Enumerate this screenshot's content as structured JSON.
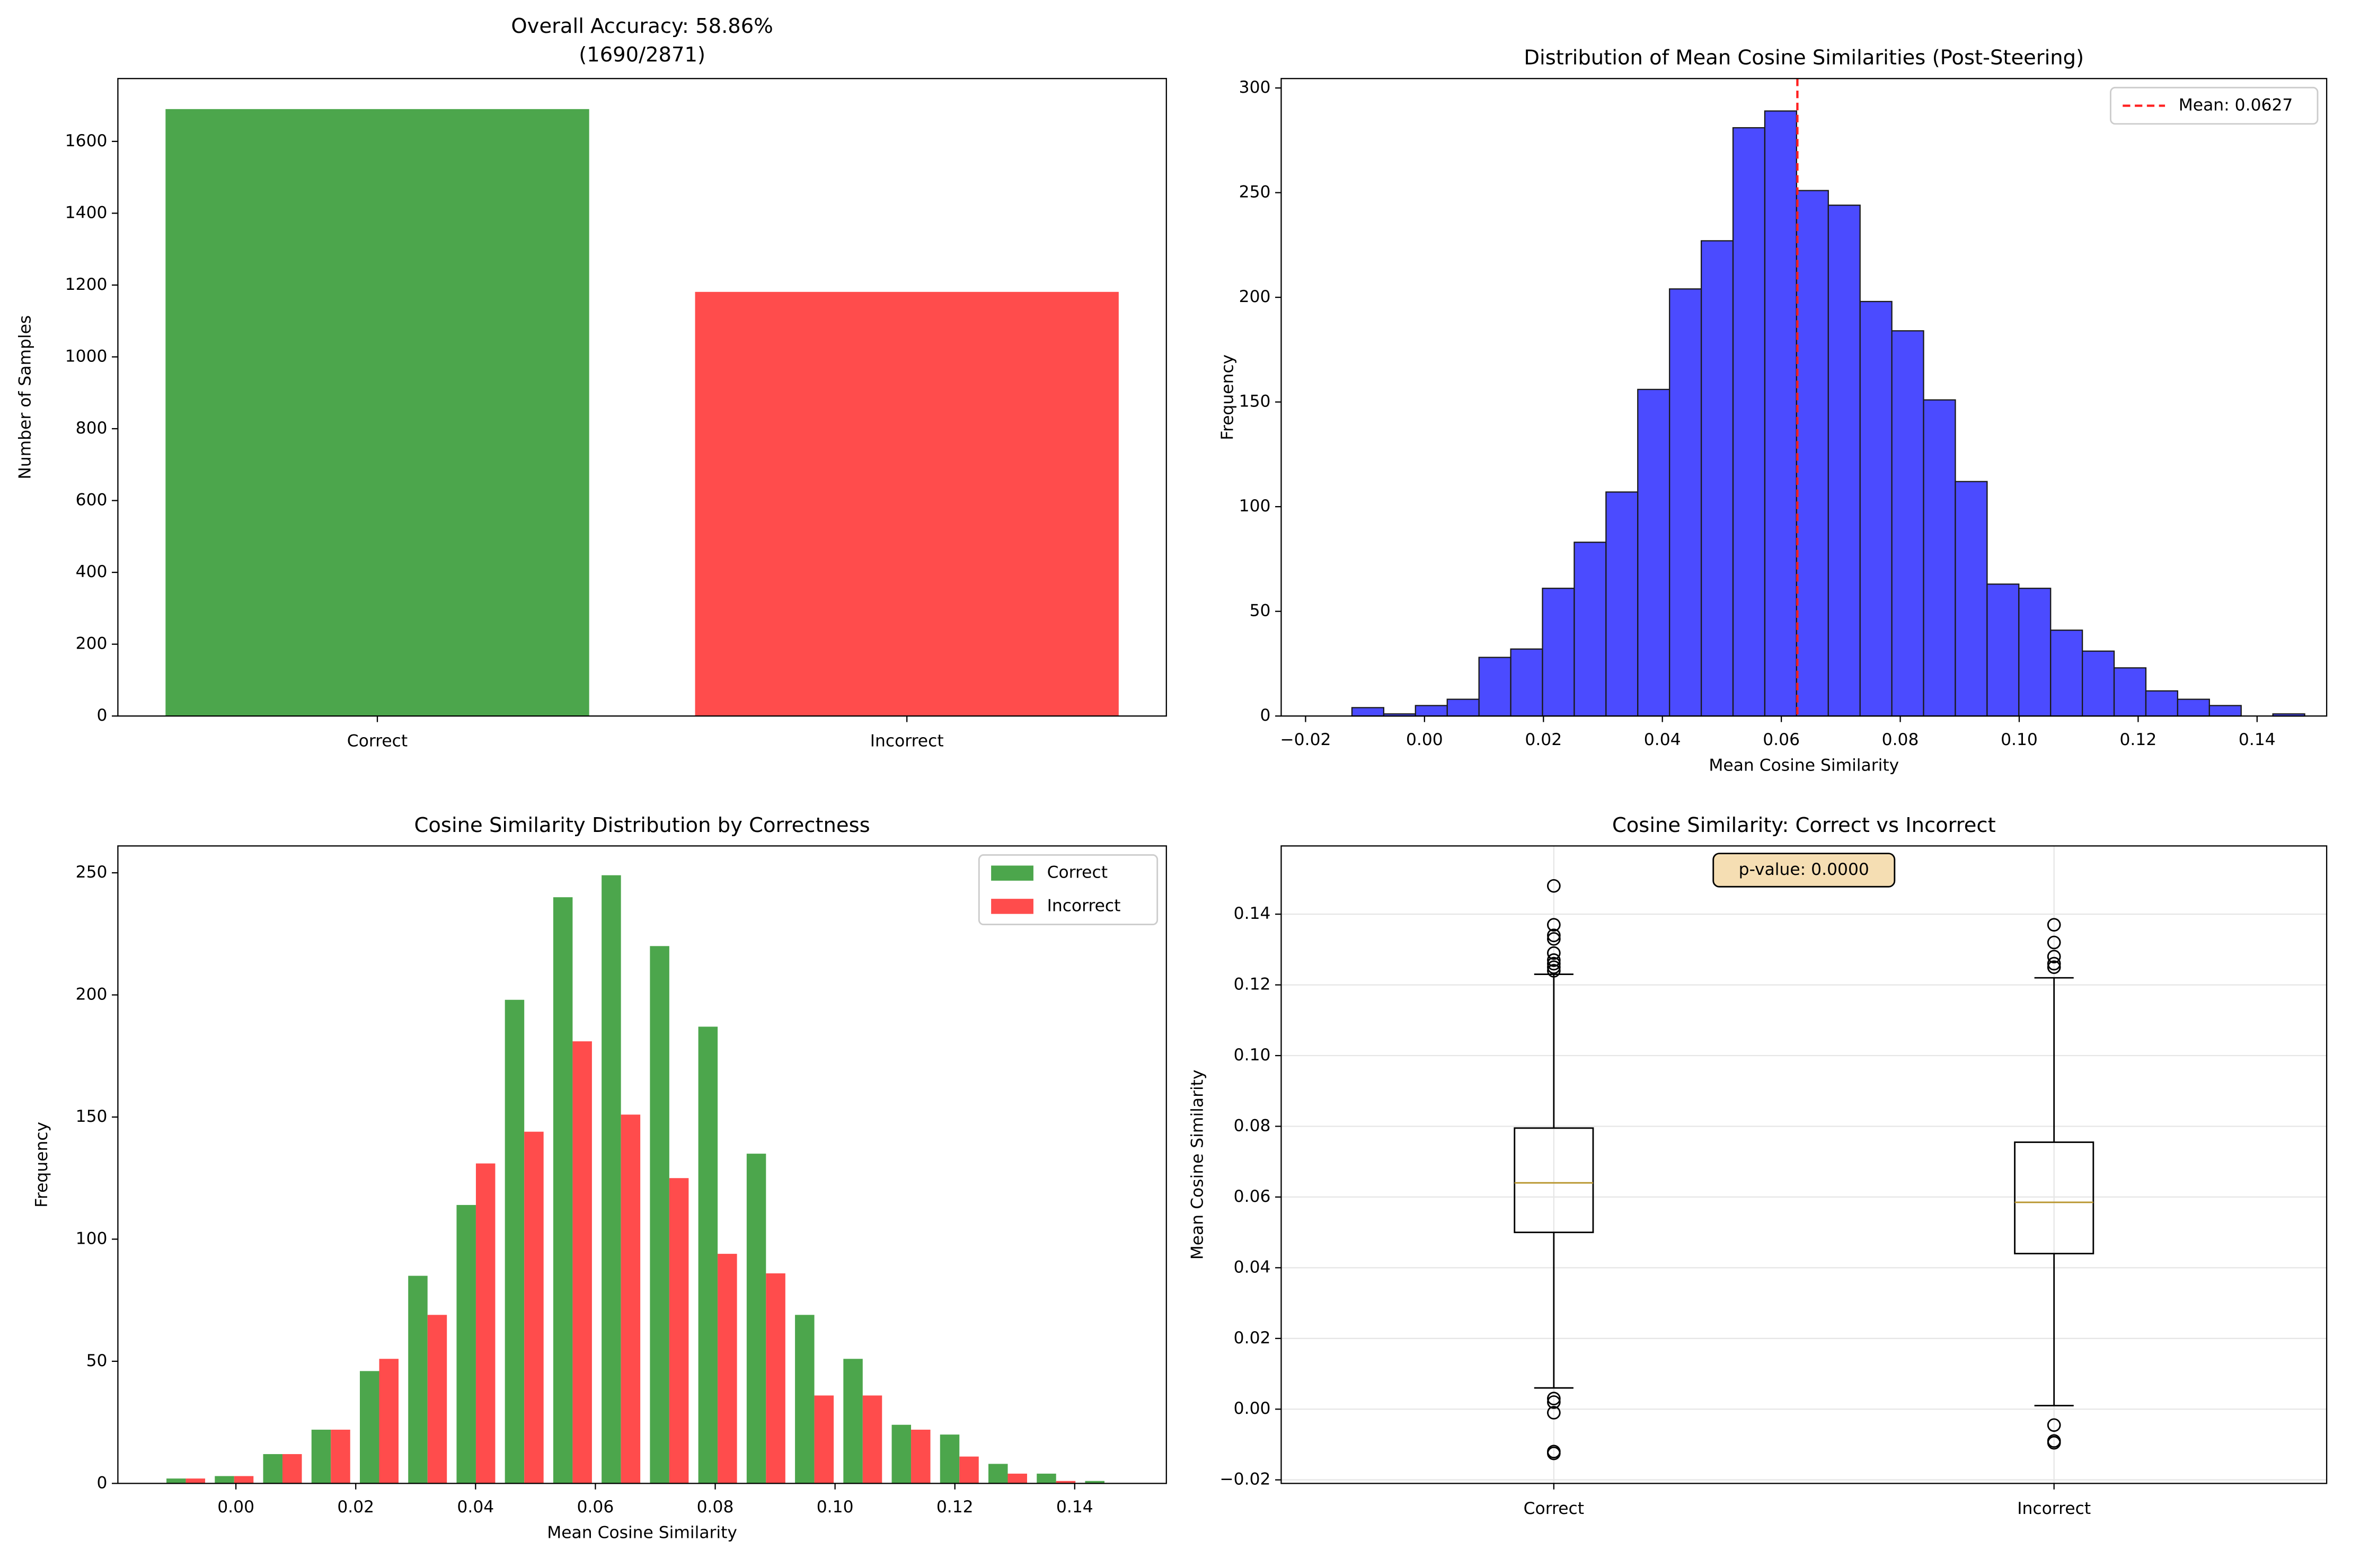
{
  "chart_data": [
    {
      "type": "bar",
      "title": "Overall Accuracy: 58.86%",
      "subtitle": "(1690/2871)",
      "ylabel": "Number of Samples",
      "categories": [
        "Correct",
        "Incorrect"
      ],
      "values": [
        1690,
        1181
      ],
      "colors": [
        "#4ca64c",
        "#ff4c4c"
      ],
      "ylim": [
        0,
        1775
      ],
      "yticks": [
        0,
        200,
        400,
        600,
        800,
        1000,
        1200,
        1400,
        1600
      ]
    },
    {
      "type": "histogram",
      "title": "Distribution of Mean Cosine Similarities (Post-Steering)",
      "xlabel": "Mean Cosine Similarity",
      "ylabel": "Frequency",
      "bins": [
        -0.0122,
        -0.00686,
        -0.00152,
        0.00382,
        0.00916,
        0.0145,
        0.01984,
        0.02518,
        0.03052,
        0.03586,
        0.0412,
        0.04654,
        0.05188,
        0.05722,
        0.06256,
        0.0679,
        0.07324,
        0.07858,
        0.08392,
        0.08926,
        0.0946,
        0.09994,
        0.10528,
        0.11062,
        0.11596,
        0.1213,
        0.12664,
        0.13198,
        0.13732,
        0.14266,
        0.148
      ],
      "values": [
        4,
        1,
        5,
        8,
        28,
        32,
        61,
        83,
        107,
        156,
        204,
        227,
        281,
        289,
        251,
        244,
        198,
        184,
        151,
        112,
        63,
        61,
        41,
        31,
        23,
        12,
        8,
        5,
        0,
        1
      ],
      "color": "#4b4bff",
      "mean_line": {
        "value": 0.0627,
        "label": "Mean: 0.0627",
        "color": "#ff2020"
      },
      "legend": "upper right",
      "xlim": [
        -0.0241,
        0.1517
      ],
      "xticks": [
        {
          "value": -0.02,
          "label": "−0.02"
        },
        {
          "value": 0,
          "label": "0.00"
        },
        0.02,
        0.04,
        0.06,
        0.08,
        {
          "value": 0.1,
          "label": "0.10"
        },
        0.12,
        0.14
      ],
      "ylim": [
        0,
        304.5
      ],
      "yticks": [
        0,
        50,
        100,
        150,
        200,
        250,
        300
      ]
    },
    {
      "type": "grouped_histogram",
      "title": "Cosine Similarity Distribution by Correctness",
      "xlabel": "Mean Cosine Similarity",
      "ylabel": "Frequency",
      "bins": [
        -0.0124,
        -0.00433,
        0.00374,
        0.01181,
        0.01988,
        0.02795,
        0.03602,
        0.04409,
        0.05216,
        0.06023,
        0.0683,
        0.07637,
        0.08444,
        0.09251,
        0.10058,
        0.10865,
        0.11672,
        0.12479,
        0.13286,
        0.14093,
        0.149
      ],
      "series": [
        {
          "name": "Correct",
          "color": "#4ca64c",
          "values": [
            2,
            3,
            12,
            22,
            46,
            85,
            114,
            198,
            240,
            249,
            220,
            187,
            135,
            69,
            51,
            24,
            20,
            8,
            4,
            1
          ]
        },
        {
          "name": "Incorrect",
          "color": "#ff4c4c",
          "values": [
            2,
            3,
            12,
            22,
            51,
            69,
            131,
            144,
            181,
            151,
            125,
            94,
            86,
            36,
            36,
            22,
            11,
            4,
            1,
            0
          ]
        }
      ],
      "legend": "upper right",
      "xlim": [
        -0.0197,
        0.1553
      ],
      "xticks": [
        {
          "value": 0,
          "label": "0.00"
        },
        0.02,
        0.04,
        0.06,
        0.08,
        {
          "value": 0.1,
          "label": "0.10"
        },
        0.12,
        0.14
      ],
      "ylim": [
        0,
        261
      ],
      "yticks": [
        0,
        50,
        100,
        150,
        200,
        250
      ]
    },
    {
      "type": "box",
      "title": "Cosine Similarity: Correct vs Incorrect",
      "ylabel": "Mean Cosine Similarity",
      "categories": [
        "Correct",
        "Incorrect"
      ],
      "boxes": [
        {
          "whislo": 0.006,
          "q1": 0.05,
          "med": 0.064,
          "q3": 0.0795,
          "whishi": 0.123,
          "fliers": [
            0.148,
            0.137,
            0.134,
            0.133,
            0.129,
            0.127,
            0.126,
            0.125,
            0.124,
            0.003,
            0.002,
            -0.001,
            -0.012,
            -0.0125
          ]
        },
        {
          "whislo": 0.001,
          "q1": 0.044,
          "med": 0.0585,
          "q3": 0.0755,
          "whishi": 0.122,
          "fliers": [
            0.137,
            0.132,
            0.128,
            0.126,
            0.125,
            -0.0045,
            -0.009,
            -0.0095
          ]
        }
      ],
      "median_color": "#b8962e",
      "annotation": "p-value: 0.0000",
      "grid": true,
      "ylim": [
        -0.021,
        0.1593
      ],
      "yticks": [
        {
          "value": -0.02,
          "label": "−0.02"
        },
        {
          "value": 0,
          "label": "0.00"
        },
        0.02,
        0.04,
        0.06,
        0.08,
        {
          "value": 0.1,
          "label": "0.10"
        },
        0.12,
        0.14
      ]
    }
  ]
}
